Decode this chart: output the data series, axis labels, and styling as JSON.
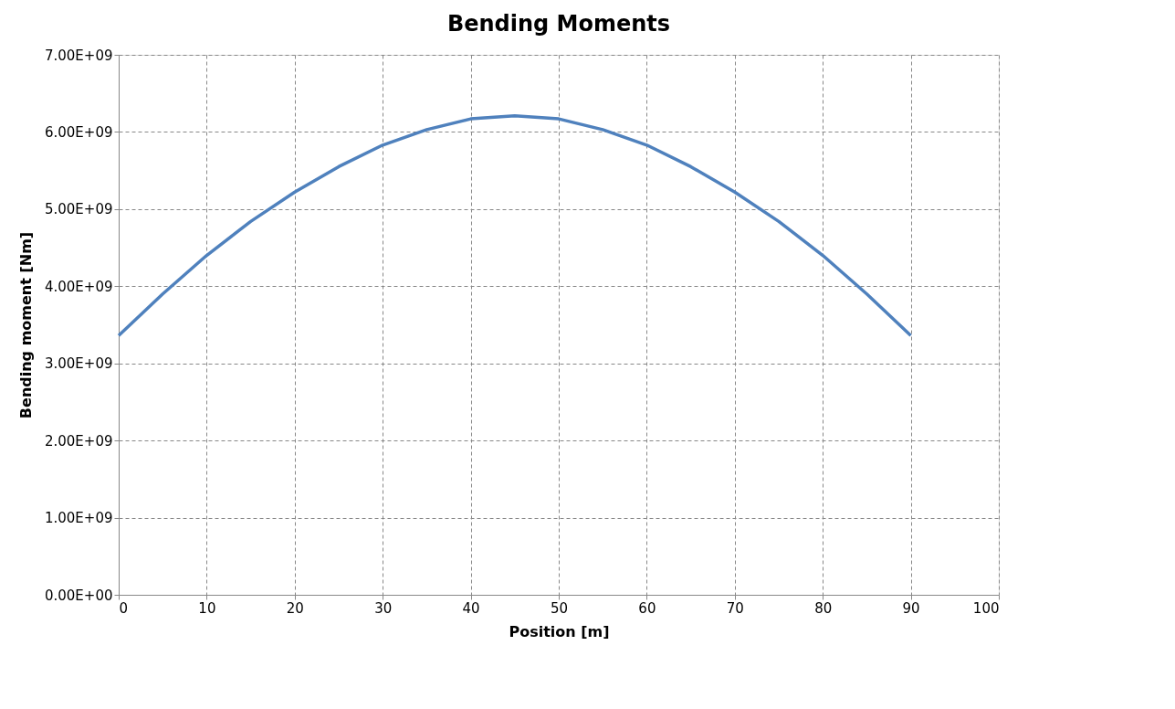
{
  "chart_data": {
    "type": "line",
    "title": "Bending Moments",
    "xlabel": "Position [m]",
    "ylabel": "Bending moment [Nm]",
    "x": [
      0,
      5,
      10,
      15,
      20,
      25,
      30,
      35,
      40,
      45,
      50,
      55,
      60,
      65,
      70,
      75,
      80,
      85,
      90
    ],
    "series": [
      {
        "color": "#4f81bd",
        "values": [
          3360000000.0,
          3900000000.0,
          4400000000.0,
          4840000000.0,
          5220000000.0,
          5550000000.0,
          5830000000.0,
          6030000000.0,
          6170000000.0,
          6210000000.0,
          6170000000.0,
          6030000000.0,
          5830000000.0,
          5550000000.0,
          5220000000.0,
          4840000000.0,
          4400000000.0,
          3900000000.0,
          3360000000.0
        ]
      }
    ],
    "xlim": [
      0,
      100
    ],
    "xticks": [
      0,
      10,
      20,
      30,
      40,
      50,
      60,
      70,
      80,
      90,
      100
    ],
    "ylim": [
      0,
      7000000000.0
    ],
    "yticks": [
      {
        "value": 0,
        "label": "0.00E+00"
      },
      {
        "value": 1000000000.0,
        "label": "1.00E+09"
      },
      {
        "value": 2000000000.0,
        "label": "2.00E+09"
      },
      {
        "value": 3000000000.0,
        "label": "3.00E+09"
      },
      {
        "value": 4000000000.0,
        "label": "4.00E+09"
      },
      {
        "value": 5000000000.0,
        "label": "5.00E+09"
      },
      {
        "value": 6000000000.0,
        "label": "6.00E+09"
      },
      {
        "value": 7000000000.0,
        "label": "7.00E+09"
      }
    ],
    "grid": true,
    "legend": false,
    "marker": "none",
    "line_style": "solid"
  }
}
